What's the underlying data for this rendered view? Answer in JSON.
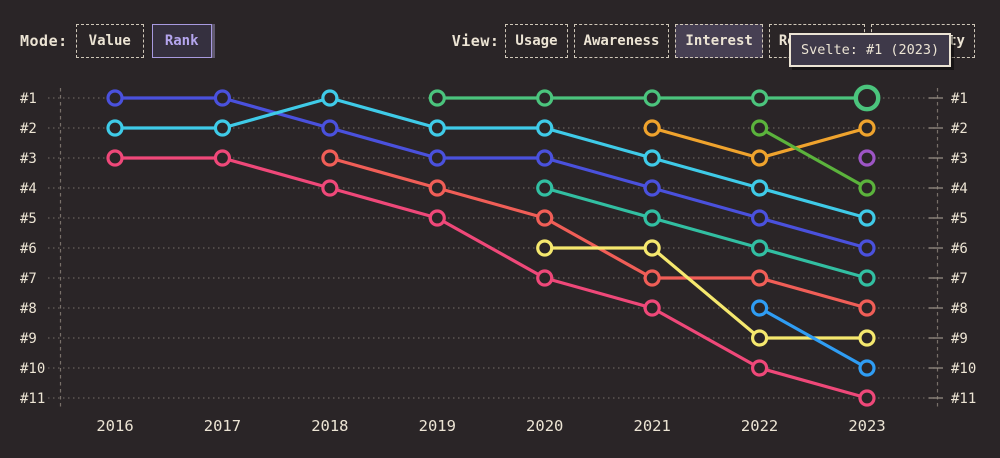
{
  "toolbar": {
    "mode_label": "Mode:",
    "modes": [
      {
        "label": "Value",
        "selected": false
      },
      {
        "label": "Rank",
        "selected": true
      }
    ],
    "view_label": "View:",
    "views": [
      {
        "label": "Usage",
        "selected": false
      },
      {
        "label": "Awareness",
        "selected": false
      },
      {
        "label": "Interest",
        "selected": true
      },
      {
        "label": "Retention",
        "selected": false
      },
      {
        "label": "Positivity",
        "selected": false
      }
    ]
  },
  "tooltip": {
    "text": "Svelte: #1 (2023)"
  },
  "colors": {
    "background": "#2a2527",
    "text_cream": "#ece4d4",
    "grid": "#9a9186",
    "accent_purple": "#b4a5ee",
    "tooltip_bg": "#3e3949"
  },
  "chart_data": {
    "type": "line",
    "variant": "bump-rank-chart",
    "title": "",
    "xlabel": "",
    "ylabel": "rank",
    "x_labels": [
      "2016",
      "2017",
      "2018",
      "2019",
      "2020",
      "2021",
      "2022",
      "2023"
    ],
    "y_labels": [
      "#1",
      "#2",
      "#3",
      "#4",
      "#5",
      "#6",
      "#7",
      "#8",
      "#9",
      "#10",
      "#11"
    ],
    "ylim": [
      1,
      11
    ],
    "grid": "dotted-horizontal",
    "legend": "none",
    "series": [
      {
        "id": "blue",
        "color": "#4a51dd",
        "ranks": [
          1,
          1,
          2,
          3,
          3,
          4,
          5,
          6
        ]
      },
      {
        "id": "cyan",
        "color": "#3fcbe8",
        "ranks": [
          2,
          2,
          1,
          2,
          2,
          3,
          4,
          5
        ]
      },
      {
        "id": "pink",
        "color": "#ef4879",
        "ranks": [
          3,
          3,
          4,
          5,
          7,
          8,
          10,
          11
        ]
      },
      {
        "id": "salmon",
        "color": "#f05e57",
        "ranks": [
          null,
          null,
          3,
          4,
          5,
          7,
          7,
          8
        ]
      },
      {
        "id": "teal",
        "color": "#32bfa2",
        "ranks": [
          null,
          null,
          null,
          null,
          4,
          5,
          6,
          7
        ]
      },
      {
        "id": "yellow",
        "color": "#f5e86e",
        "ranks": [
          null,
          null,
          null,
          null,
          6,
          6,
          9,
          9
        ]
      },
      {
        "id": "orange",
        "color": "#efa32d",
        "ranks": [
          null,
          null,
          null,
          null,
          null,
          2,
          3,
          2
        ]
      },
      {
        "id": "light-green",
        "color": "#5bb33c",
        "ranks": [
          null,
          null,
          null,
          null,
          null,
          null,
          2,
          4
        ]
      },
      {
        "id": "sky-blue",
        "color": "#2f9df4",
        "ranks": [
          null,
          null,
          null,
          null,
          null,
          null,
          8,
          10
        ]
      },
      {
        "id": "purple",
        "color": "#9d55c5",
        "ranks": [
          null,
          null,
          null,
          null,
          null,
          null,
          null,
          3
        ]
      },
      {
        "id": "svelte-green",
        "color": "#4bc47d",
        "ranks": [
          null,
          null,
          null,
          1,
          1,
          1,
          1,
          1
        ]
      }
    ],
    "highlight": {
      "series": "svelte-green",
      "x_label": "2023",
      "rank": 1,
      "tooltip": "Svelte: #1 (2023)"
    }
  }
}
